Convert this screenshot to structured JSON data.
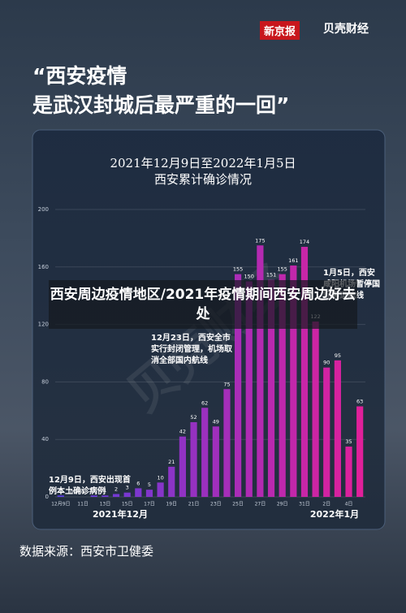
{
  "header": {
    "logo_left": "新京报",
    "logo_right": "贝壳财经"
  },
  "quote": [
    "“西安疫情",
    "是武汉封城后最严重的一回”"
  ],
  "chart_data": {
    "type": "bar",
    "title": [
      "2021年12月9日至2022年1月5日",
      "西安累计确诊情况"
    ],
    "categories": [
      "12月9日",
      null,
      "11日",
      null,
      "13日",
      null,
      "15日",
      null,
      "17日",
      null,
      "19日",
      null,
      "21日",
      null,
      "23日",
      null,
      "25日",
      null,
      "27日",
      null,
      "29日",
      null,
      "31日",
      null,
      "2日",
      null,
      "4日",
      null
    ],
    "values": [
      1,
      0,
      0,
      1,
      1,
      2,
      3,
      6,
      5,
      10,
      21,
      42,
      52,
      62,
      49,
      75,
      155,
      150,
      175,
      151,
      155,
      161,
      174,
      122,
      90,
      95,
      35,
      63
    ],
    "color_start": "#5b3fe0",
    "color_end": "#e0209a",
    "ylim": [
      0,
      200
    ],
    "yticks": [
      0,
      40,
      80,
      120,
      160,
      200
    ],
    "month_labels": [
      "2021年12月",
      "2022年1月"
    ],
    "annotations": [
      "12月9日，西安出现首例本土确诊病例",
      "12月23日，西安全市实行封闭管理，机场取消全部国内航线",
      "1月5日，西安咸阳机场暂停国际客运航线"
    ],
    "watermark": "贝壳财经"
  },
  "banner": "西安周边疫情地区/2021年疫情期间西安周边好去处",
  "source": "数据来源：西安市卫健委"
}
